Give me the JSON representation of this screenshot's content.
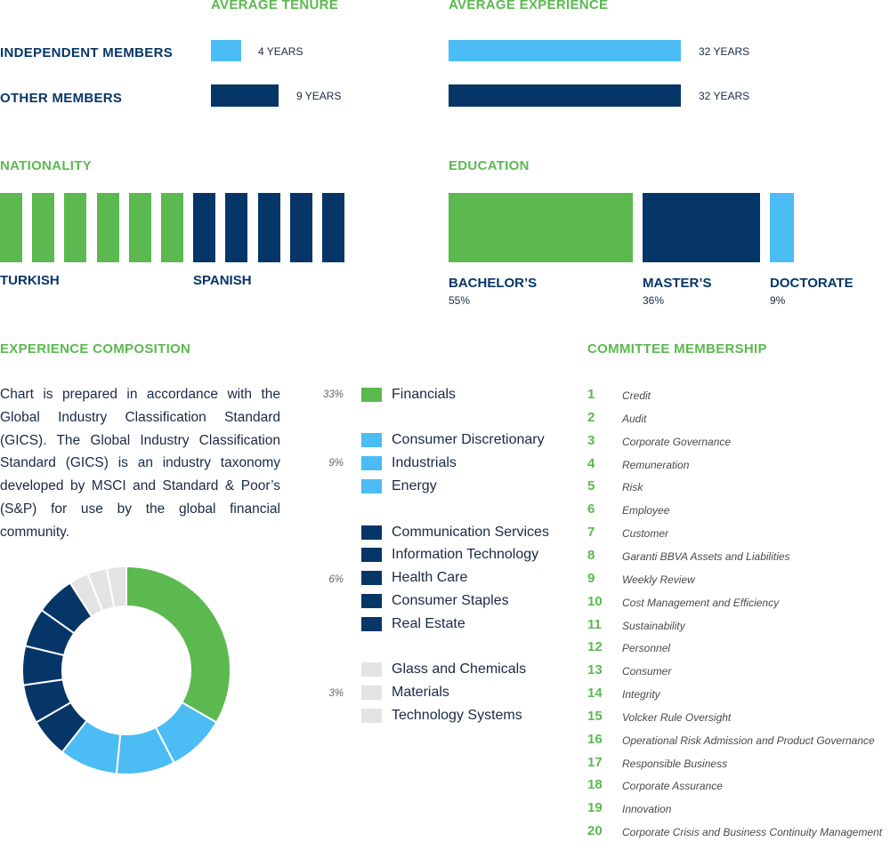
{
  "colors": {
    "green": "#5bb94f",
    "light_blue": "#4cbcf5",
    "navy": "#063667",
    "grey": "#e3e3e3"
  },
  "tenure": {
    "title": "AVERAGE TENURE",
    "rows": [
      {
        "label": "INDEPENDENT MEMBERS",
        "value": 4,
        "value_label": "4 YEARS",
        "color": "#4cbcf5"
      },
      {
        "label": "OTHER MEMBERS",
        "value": 9,
        "value_label": "9 YEARS",
        "color": "#063667"
      }
    ]
  },
  "experience": {
    "title": "AVERAGE EXPERIENCE",
    "rows": [
      {
        "value": 32,
        "value_label": "32 YEARS",
        "color": "#4cbcf5"
      },
      {
        "value": 32,
        "value_label": "32 YEARS",
        "color": "#063667"
      }
    ]
  },
  "nationality": {
    "title": "NATIONALITY",
    "groups": [
      {
        "label": "TURKISH",
        "count": 6,
        "color": "#5bb94f"
      },
      {
        "label": "SPANISH",
        "count": 5,
        "color": "#063667"
      }
    ]
  },
  "education": {
    "title": "EDUCATION",
    "items": [
      {
        "label": "BACHELOR’S",
        "value": 55,
        "pct_label": "55%",
        "color": "#5bb94f"
      },
      {
        "label": "MASTER’S",
        "value": 36,
        "pct_label": "36%",
        "color": "#063667"
      },
      {
        "label": "DOCTORATE",
        "value": 9,
        "pct_label": "9%",
        "color": "#4cbcf5"
      }
    ]
  },
  "composition": {
    "title": "EXPERIENCE COMPOSITION",
    "description": "Chart is prepared in accordance with the Global Industry Classification Standard (GICS). The Global Industry Classification Standard (GICS) is an industry taxonomy developed by MSCI and Standard & Poor’s (S&P) for use by the global financial community."
  },
  "chart_data": {
    "type": "pie",
    "donut": true,
    "slices": [
      {
        "name": "Financials",
        "value": 33,
        "color": "#5bb94f"
      },
      {
        "name": "Consumer Discretionary",
        "value": 9,
        "color": "#4cbcf5"
      },
      {
        "name": "Industrials",
        "value": 9,
        "color": "#4cbcf5"
      },
      {
        "name": "Energy",
        "value": 9,
        "color": "#4cbcf5"
      },
      {
        "name": "Communication Services",
        "value": 6,
        "color": "#063667"
      },
      {
        "name": "Information Technology",
        "value": 6,
        "color": "#063667"
      },
      {
        "name": "Health Care",
        "value": 6,
        "color": "#063667"
      },
      {
        "name": "Consumer Staples",
        "value": 6,
        "color": "#063667"
      },
      {
        "name": "Real Estate",
        "value": 6,
        "color": "#063667"
      },
      {
        "name": "Glass and Chemicals",
        "value": 3,
        "color": "#e3e3e3"
      },
      {
        "name": "Materials",
        "value": 3,
        "color": "#e3e3e3"
      },
      {
        "name": "Technology Systems",
        "value": 3,
        "color": "#e3e3e3"
      }
    ],
    "legend_groups": [
      {
        "pct_label": "33%",
        "items": [
          "Financials"
        ],
        "color": "#5bb94f"
      },
      {
        "pct_label": "9%",
        "items": [
          "Consumer Discretionary",
          "Industrials",
          "Energy"
        ],
        "color": "#4cbcf5"
      },
      {
        "pct_label": "6%",
        "items": [
          "Communication Services",
          "Information Technology",
          "Health Care",
          "Consumer Staples",
          "Real Estate"
        ],
        "color": "#063667"
      },
      {
        "pct_label": "3%",
        "items": [
          "Glass and Chemicals",
          "Materials",
          "Technology Systems"
        ],
        "color": "#e3e3e3"
      }
    ]
  },
  "committees": {
    "title": "COMMITTEE MEMBERSHIP",
    "items": [
      {
        "num": "1",
        "name": "Credit"
      },
      {
        "num": "2",
        "name": "Audit"
      },
      {
        "num": "3",
        "name": "Corporate Governance"
      },
      {
        "num": "4",
        "name": "Remuneration"
      },
      {
        "num": "5",
        "name": "Risk"
      },
      {
        "num": "6",
        "name": "Employee"
      },
      {
        "num": "7",
        "name": "Customer"
      },
      {
        "num": "8",
        "name": "Garanti BBVA Assets and Liabilities"
      },
      {
        "num": "9",
        "name": "Weekly Review"
      },
      {
        "num": "10",
        "name": "Cost Management and Efficiency"
      },
      {
        "num": "11",
        "name": "Sustainability"
      },
      {
        "num": "12",
        "name": "Personnel"
      },
      {
        "num": "13",
        "name": "Consumer"
      },
      {
        "num": "14",
        "name": "Integrity"
      },
      {
        "num": "15",
        "name": "Volcker Rule Oversight"
      },
      {
        "num": "16",
        "name": "Operational Risk Admission and Product Governance"
      },
      {
        "num": "17",
        "name": "Responsible Business"
      },
      {
        "num": "18",
        "name": "Corporate Assurance"
      },
      {
        "num": "19",
        "name": "Innovation"
      },
      {
        "num": "20",
        "name": "Corporate Crisis and Business Continuity Management"
      }
    ]
  }
}
